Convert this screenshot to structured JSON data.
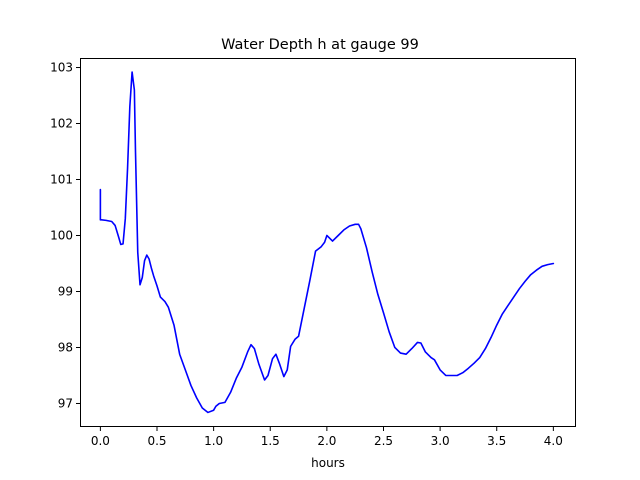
{
  "chart_data": {
    "type": "line",
    "title": "Water Depth h at gauge 99",
    "xlabel": "hours",
    "ylabel": "",
    "xlim": [
      -0.18,
      4.2
    ],
    "ylim": [
      96.58,
      103.17
    ],
    "x_ticks": [
      0.0,
      0.5,
      1.0,
      1.5,
      2.0,
      2.5,
      3.0,
      3.5,
      4.0
    ],
    "x_tick_labels": [
      "0.0",
      "0.5",
      "1.0",
      "1.5",
      "2.0",
      "2.5",
      "3.0",
      "3.5",
      "4.0"
    ],
    "y_ticks": [
      97,
      98,
      99,
      100,
      101,
      102,
      103
    ],
    "y_tick_labels": [
      "97",
      "98",
      "99",
      "100",
      "101",
      "102",
      "103"
    ],
    "grid": false,
    "legend": "none",
    "series": [
      {
        "color": "#0000ff",
        "x": [
          0.0,
          0.0,
          0.01,
          0.05,
          0.1,
          0.13,
          0.16,
          0.18,
          0.2,
          0.22,
          0.24,
          0.26,
          0.28,
          0.3,
          0.31,
          0.33,
          0.35,
          0.37,
          0.39,
          0.41,
          0.43,
          0.45,
          0.47,
          0.5,
          0.53,
          0.57,
          0.6,
          0.65,
          0.7,
          0.75,
          0.8,
          0.85,
          0.9,
          0.95,
          1.0,
          1.02,
          1.05,
          1.1,
          1.15,
          1.2,
          1.25,
          1.3,
          1.33,
          1.36,
          1.4,
          1.45,
          1.48,
          1.52,
          1.55,
          1.58,
          1.62,
          1.65,
          1.68,
          1.72,
          1.75,
          1.8,
          1.85,
          1.9,
          1.95,
          1.98,
          2.0,
          2.02,
          2.05,
          2.1,
          2.15,
          2.2,
          2.25,
          2.28,
          2.3,
          2.35,
          2.4,
          2.45,
          2.5,
          2.55,
          2.6,
          2.65,
          2.7,
          2.75,
          2.8,
          2.83,
          2.87,
          2.92,
          2.95,
          3.0,
          3.05,
          3.1,
          3.15,
          3.2,
          3.25,
          3.3,
          3.35,
          3.4,
          3.45,
          3.5,
          3.55,
          3.6,
          3.65,
          3.7,
          3.75,
          3.8,
          3.85,
          3.9,
          3.95,
          4.0
        ],
        "y": [
          100.82,
          100.28,
          100.28,
          100.27,
          100.25,
          100.18,
          99.98,
          99.84,
          99.85,
          100.3,
          101.2,
          102.3,
          102.92,
          102.6,
          101.5,
          99.7,
          99.12,
          99.25,
          99.55,
          99.65,
          99.58,
          99.42,
          99.28,
          99.1,
          98.9,
          98.82,
          98.72,
          98.4,
          97.88,
          97.6,
          97.32,
          97.1,
          96.92,
          96.84,
          96.88,
          96.95,
          97.0,
          97.02,
          97.2,
          97.45,
          97.65,
          97.92,
          98.05,
          97.98,
          97.7,
          97.42,
          97.5,
          97.8,
          97.88,
          97.72,
          97.48,
          97.6,
          98.02,
          98.15,
          98.2,
          98.7,
          99.2,
          99.72,
          99.8,
          99.88,
          100.0,
          99.96,
          99.9,
          100.0,
          100.1,
          100.17,
          100.2,
          100.2,
          100.12,
          99.78,
          99.35,
          98.95,
          98.62,
          98.28,
          98.0,
          97.9,
          97.88,
          97.98,
          98.09,
          98.08,
          97.92,
          97.82,
          97.78,
          97.6,
          97.5,
          97.5,
          97.5,
          97.55,
          97.63,
          97.72,
          97.82,
          97.98,
          98.18,
          98.4,
          98.6,
          98.75,
          98.9,
          99.05,
          99.18,
          99.3,
          99.38,
          99.45,
          99.48,
          99.5
        ]
      }
    ]
  }
}
